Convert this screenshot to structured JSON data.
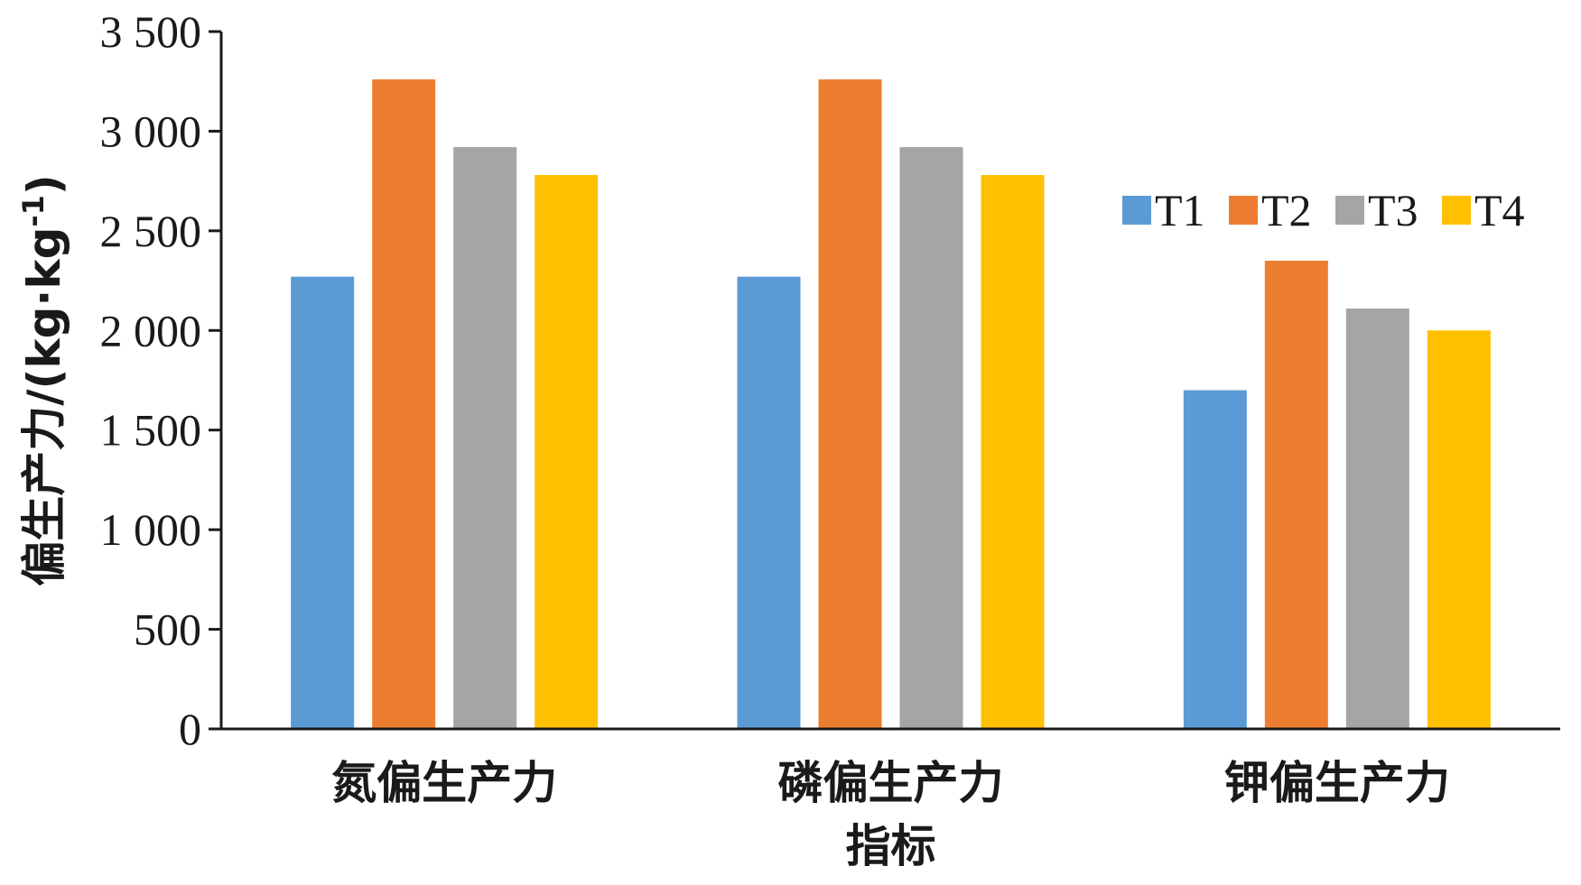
{
  "chart_data": {
    "type": "bar",
    "categories": [
      "氮偏生产力",
      "磷偏生产力",
      "钾偏生产力"
    ],
    "series": [
      {
        "name": "T1",
        "color": "#5b9bd5",
        "values": [
          2270,
          2270,
          1700
        ]
      },
      {
        "name": "T2",
        "color": "#ed7d31",
        "values": [
          3260,
          3260,
          2350
        ]
      },
      {
        "name": "T3",
        "color": "#a5a5a5",
        "values": [
          2920,
          2920,
          2110
        ]
      },
      {
        "name": "T4",
        "color": "#ffc000",
        "values": [
          2780,
          2780,
          2000
        ]
      }
    ],
    "xlabel": "指标",
    "ylabel_main": "偏生产力/(kg·kg",
    "ylabel_sup": "-1",
    "ylabel_end": ")",
    "ylim": [
      0,
      3500
    ],
    "yticks": [
      {
        "value": 0,
        "label": "0"
      },
      {
        "value": 500,
        "label": "500"
      },
      {
        "value": 1000,
        "label": "1 000"
      },
      {
        "value": 1500,
        "label": "1 500"
      },
      {
        "value": 2000,
        "label": "2 000"
      },
      {
        "value": 2500,
        "label": "2 500"
      },
      {
        "value": 3000,
        "label": "3 000"
      },
      {
        "value": 3500,
        "label": "3 500"
      }
    ],
    "legend_position": "right",
    "grid": false
  }
}
